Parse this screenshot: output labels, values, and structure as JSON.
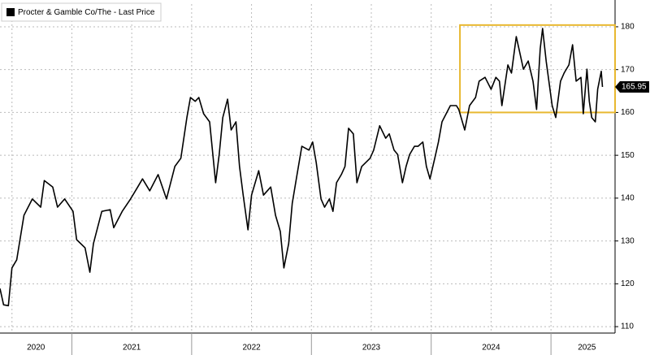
{
  "chart_data": {
    "type": "line",
    "legend_label": "Procter & Gamble Co/The - Last Price",
    "legend_corner": "top-left",
    "series": [
      {
        "name": "Procter & Gamble Co/The - Last Price",
        "color": "#000000",
        "x": [
          2020.4,
          2020.43,
          2020.47,
          2020.5,
          2020.54,
          2020.6,
          2020.67,
          2020.74,
          2020.77,
          2020.84,
          2020.88,
          2020.94,
          2021.01,
          2021.04,
          2021.11,
          2021.15,
          2021.18,
          2021.25,
          2021.32,
          2021.35,
          2021.42,
          2021.49,
          2021.55,
          2021.59,
          2021.65,
          2021.72,
          2021.79,
          2021.86,
          2021.91,
          2021.96,
          2021.99,
          2022.03,
          2022.06,
          2022.1,
          2022.15,
          2022.2,
          2022.23,
          2022.26,
          2022.3,
          2022.33,
          2022.37,
          2022.4,
          2022.43,
          2022.47,
          2022.5,
          2022.56,
          2022.6,
          2022.66,
          2022.7,
          2022.74,
          2022.77,
          2022.81,
          2022.84,
          2022.88,
          2022.92,
          2022.98,
          2023.01,
          2023.04,
          2023.08,
          2023.11,
          2023.15,
          2023.18,
          2023.21,
          2023.25,
          2023.28,
          2023.31,
          2023.35,
          2023.38,
          2023.42,
          2023.49,
          2023.52,
          2023.57,
          2023.62,
          2023.65,
          2023.69,
          2023.72,
          2023.76,
          2023.79,
          2023.82,
          2023.86,
          2023.89,
          2023.93,
          2023.96,
          2023.99,
          2024.03,
          2024.06,
          2024.09,
          2024.16,
          2024.21,
          2024.23,
          2024.28,
          2024.32,
          2024.37,
          2024.4,
          2024.45,
          2024.5,
          2024.54,
          2024.57,
          2024.59,
          2024.64,
          2024.67,
          2024.71,
          2024.74,
          2024.77,
          2024.81,
          2024.85,
          2024.88,
          2024.91,
          2024.93,
          2024.96,
          2025.01,
          2025.04,
          2025.08,
          2025.11,
          2025.15,
          2025.18,
          2025.21,
          2025.25,
          2025.27,
          2025.3,
          2025.32,
          2025.34,
          2025.37,
          2025.39,
          2025.42,
          2025.43
        ],
        "values": [
          118.9,
          115.1,
          114.9,
          123.7,
          125.6,
          136.0,
          139.8,
          137.9,
          144.1,
          142.6,
          137.9,
          139.8,
          136.9,
          130.3,
          128.4,
          122.7,
          129.4,
          136.9,
          137.3,
          133.1,
          136.9,
          139.8,
          142.6,
          144.5,
          141.7,
          145.5,
          139.8,
          147.4,
          149.3,
          158.8,
          163.5,
          162.6,
          163.5,
          159.7,
          157.8,
          143.6,
          150.2,
          158.8,
          163.1,
          155.9,
          157.8,
          147.4,
          140.7,
          132.6,
          140.7,
          146.4,
          140.7,
          142.6,
          136.0,
          132.2,
          123.7,
          129.4,
          138.8,
          145.5,
          152.1,
          151.2,
          153.1,
          148.3,
          139.8,
          137.9,
          139.8,
          136.9,
          143.6,
          145.5,
          147.4,
          156.3,
          155.0,
          143.6,
          147.4,
          149.3,
          151.2,
          156.9,
          154.0,
          155.0,
          151.2,
          150.2,
          143.6,
          147.4,
          150.2,
          152.1,
          152.1,
          153.1,
          147.4,
          144.5,
          149.3,
          153.1,
          157.8,
          161.6,
          161.6,
          160.7,
          155.9,
          161.6,
          163.5,
          167.3,
          168.2,
          165.4,
          168.2,
          167.3,
          161.6,
          171.1,
          169.2,
          177.7,
          173.9,
          170.1,
          172.0,
          167.3,
          160.7,
          174.9,
          179.6,
          172.0,
          161.6,
          158.8,
          167.3,
          169.2,
          171.1,
          175.8,
          167.3,
          168.2,
          159.7,
          170.1,
          162.6,
          158.8,
          157.8,
          165.4,
          169.6,
          165.95
        ]
      }
    ],
    "xlim": [
      2020.4,
      2025.535
    ],
    "xticks": [
      {
        "value": 2020.7,
        "label": "2020"
      },
      {
        "value": 2021.5,
        "label": "2021"
      },
      {
        "value": 2022.5,
        "label": "2022"
      },
      {
        "value": 2023.5,
        "label": "2023"
      },
      {
        "value": 2024.5,
        "label": "2024"
      },
      {
        "value": 2025.3,
        "label": "2025"
      }
    ],
    "year_bounds": [
      2021,
      2022,
      2023,
      2024,
      2025
    ],
    "xgrid": [
      2020.5,
      2021,
      2021.5,
      2022,
      2022.5,
      2023,
      2023.5,
      2024,
      2024.5,
      2025
    ],
    "ylim": [
      108.5,
      185.3
    ],
    "yticks": [
      110,
      120,
      130,
      140,
      150,
      160,
      170,
      180
    ],
    "grid": true,
    "highlight_box": {
      "x": [
        2024.24,
        2025.535
      ],
      "y": [
        160,
        180.4
      ],
      "color": "#e8b830"
    }
  }
}
